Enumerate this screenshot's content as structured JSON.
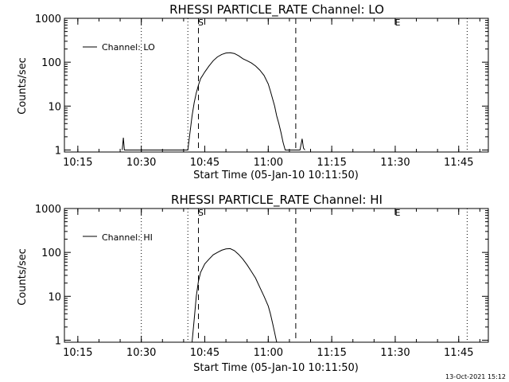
{
  "footer_timestamp": "13-Oct-2021 15:12",
  "chart_data": [
    {
      "type": "line",
      "title": "RHESSI PARTICLE_RATE Channel: LO",
      "xlabel": "Start Time (05-Jan-10 10:11:50)",
      "ylabel": "Counts/sec",
      "y_scale": "log",
      "ylim": [
        0.9,
        1000
      ],
      "xlim": [
        "10:11:50",
        "11:52:00"
      ],
      "x_ticks": [
        "10:15",
        "10:30",
        "10:45",
        "11:00",
        "11:15",
        "11:30",
        "11:45"
      ],
      "y_ticks": [
        "1",
        "10",
        "100",
        "1000"
      ],
      "legend": {
        "label": "Channel: LO",
        "position": "top-left"
      },
      "markers": [
        {
          "label": "S",
          "time": "10:43:30",
          "style": "dashed"
        },
        {
          "label": "",
          "time": "11:06:30",
          "style": "dashed"
        },
        {
          "label": "E",
          "time": "11:30:00",
          "style": "none"
        }
      ],
      "night_lines": [
        "10:30:00",
        "10:41:00",
        "11:47:00"
      ],
      "series": [
        {
          "name": "Channel: LO",
          "x": [
            "10:25:30",
            "10:25:45",
            "10:26:00",
            "10:41:00",
            "10:41:30",
            "10:42:00",
            "10:42:30",
            "10:43:00",
            "10:43:30",
            "10:44:00",
            "10:45:00",
            "10:46:00",
            "10:47:00",
            "10:48:00",
            "10:49:00",
            "10:50:00",
            "10:51:00",
            "10:52:00",
            "10:53:00",
            "10:54:00",
            "10:55:00",
            "10:56:00",
            "10:57:00",
            "10:58:00",
            "10:59:00",
            "11:00:00",
            "11:00:30",
            "11:01:00",
            "11:01:30",
            "11:02:00",
            "11:02:30",
            "11:03:00",
            "11:03:30",
            "11:04:00",
            "11:07:30",
            "11:08:00",
            "11:08:20",
            "11:08:40"
          ],
          "values": [
            1,
            1.9,
            1,
            1,
            2.5,
            6,
            12,
            20,
            30,
            42,
            60,
            82,
            108,
            132,
            150,
            162,
            165,
            158,
            140,
            120,
            108,
            96,
            82,
            66,
            50,
            32,
            22,
            15,
            10,
            6,
            4,
            2.5,
            1.5,
            1,
            1,
            1.8,
            1.1,
            1
          ]
        }
      ]
    },
    {
      "type": "line",
      "title": "RHESSI PARTICLE_RATE Channel: HI",
      "xlabel": "Start Time (05-Jan-10 10:11:50)",
      "ylabel": "Counts/sec",
      "y_scale": "log",
      "ylim": [
        0.9,
        1000
      ],
      "xlim": [
        "10:11:50",
        "11:52:00"
      ],
      "x_ticks": [
        "10:15",
        "10:30",
        "10:45",
        "11:00",
        "11:15",
        "11:30",
        "11:45"
      ],
      "y_ticks": [
        "1",
        "10",
        "100",
        "1000"
      ],
      "legend": {
        "label": "Channel: HI",
        "position": "top-left"
      },
      "markers": [
        {
          "label": "S",
          "time": "10:43:30",
          "style": "dashed"
        },
        {
          "label": "",
          "time": "11:06:30",
          "style": "dashed"
        },
        {
          "label": "E",
          "time": "11:30:00",
          "style": "none"
        }
      ],
      "night_lines": [
        "10:30:00",
        "10:41:00",
        "11:47:00"
      ],
      "series": [
        {
          "name": "Channel: HI",
          "x": [
            "10:42:00",
            "10:42:30",
            "10:43:00",
            "10:43:30",
            "10:44:00",
            "10:45:00",
            "10:46:00",
            "10:47:00",
            "10:48:00",
            "10:49:00",
            "10:50:00",
            "10:51:00",
            "10:52:00",
            "10:53:00",
            "10:54:00",
            "10:55:00",
            "10:56:00",
            "10:57:00",
            "10:58:00",
            "10:59:00",
            "11:00:00",
            "11:00:30",
            "11:01:00",
            "11:01:30",
            "11:02:00"
          ],
          "values": [
            0.9,
            3,
            10,
            22,
            35,
            55,
            70,
            88,
            100,
            112,
            120,
            122,
            110,
            90,
            70,
            52,
            37,
            26,
            16,
            10,
            6,
            4,
            2.5,
            1.5,
            0.9
          ]
        }
      ]
    }
  ]
}
